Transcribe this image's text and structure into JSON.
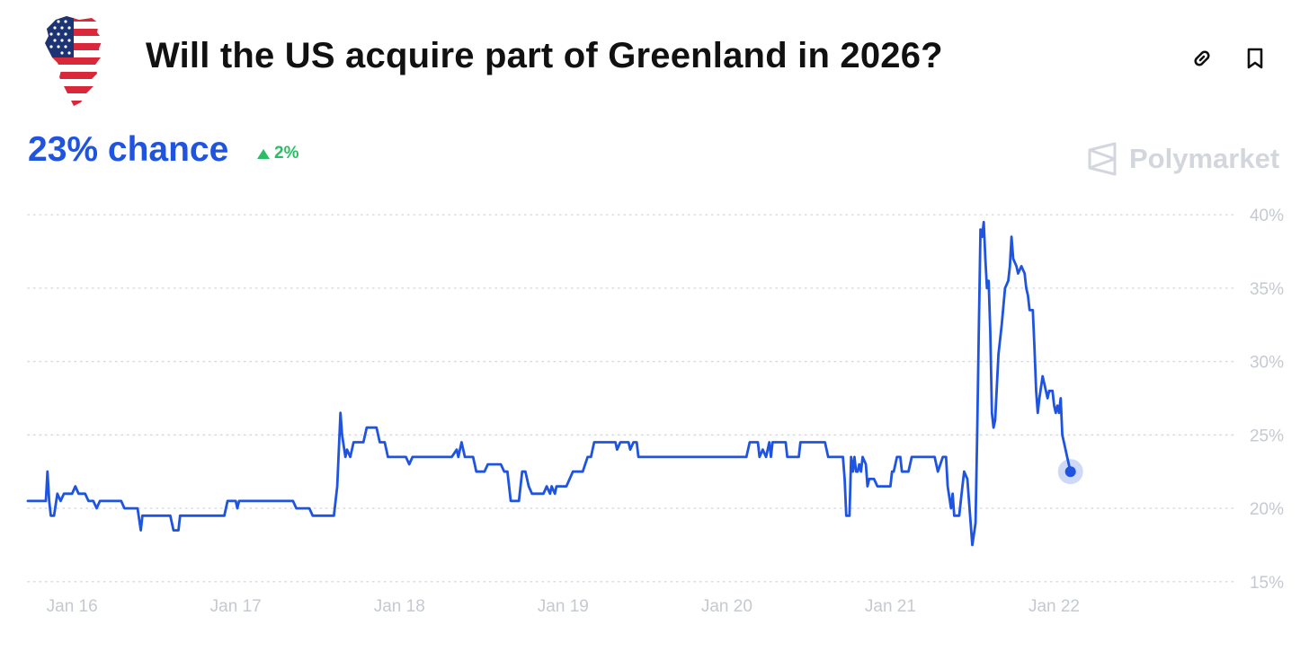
{
  "header": {
    "title": "Will the US acquire part of Greenland in 2026?",
    "icon": "greenland-us-flag-icon",
    "link_icon": "link-icon",
    "bookmark_icon": "bookmark-icon"
  },
  "stats": {
    "chance_label": "23% chance",
    "change_label": "2%",
    "change_direction": "up"
  },
  "brand": {
    "name": "Polymarket",
    "icon": "polymarket-logo-icon"
  },
  "colors": {
    "accent": "#1f54e0",
    "positive": "#2bbd66",
    "grid": "#d6d9de",
    "axis_text": "#c5c9d0",
    "brand_text": "#d3d6dc",
    "title": "#111111"
  },
  "chart_data": {
    "type": "line",
    "title": "",
    "xlabel": "",
    "ylabel": "",
    "x_unit": "days",
    "xlim": [
      15.33,
      22.63
    ],
    "ylim": [
      14.5,
      40.5
    ],
    "grid": true,
    "grid_style": "dotted",
    "legend": "none",
    "x_ticks": [
      {
        "value": 15.6,
        "label": "Jan 16"
      },
      {
        "value": 16.6,
        "label": "Jan 17"
      },
      {
        "value": 17.6,
        "label": "Jan 18"
      },
      {
        "value": 18.6,
        "label": "Jan 19"
      },
      {
        "value": 19.6,
        "label": "Jan 20"
      },
      {
        "value": 20.6,
        "label": "Jan 21"
      },
      {
        "value": 21.6,
        "label": "Jan 22"
      }
    ],
    "y_ticks": [
      {
        "value": 15,
        "label": "15%"
      },
      {
        "value": 20,
        "label": "20%"
      },
      {
        "value": 25,
        "label": "25%"
      },
      {
        "value": 30,
        "label": "30%"
      },
      {
        "value": 35,
        "label": "35%"
      },
      {
        "value": 40,
        "label": "40%"
      }
    ],
    "series": [
      {
        "name": "",
        "color": "#1f54e0",
        "points": [
          [
            15.33,
            20.5
          ],
          [
            15.44,
            20.5
          ],
          [
            15.45,
            22.5
          ],
          [
            15.46,
            20.5
          ],
          [
            15.47,
            19.5
          ],
          [
            15.49,
            19.5
          ],
          [
            15.51,
            21.0
          ],
          [
            15.53,
            20.5
          ],
          [
            15.55,
            21.0
          ],
          [
            15.6,
            21.0
          ],
          [
            15.62,
            21.5
          ],
          [
            15.64,
            21.0
          ],
          [
            15.68,
            21.0
          ],
          [
            15.7,
            20.5
          ],
          [
            15.73,
            20.5
          ],
          [
            15.75,
            20.0
          ],
          [
            15.77,
            20.5
          ],
          [
            15.9,
            20.5
          ],
          [
            15.92,
            20.0
          ],
          [
            16.0,
            20.0
          ],
          [
            16.02,
            18.5
          ],
          [
            16.03,
            19.5
          ],
          [
            16.2,
            19.5
          ],
          [
            16.22,
            18.5
          ],
          [
            16.25,
            18.5
          ],
          [
            16.26,
            19.5
          ],
          [
            16.53,
            19.5
          ],
          [
            16.55,
            20.5
          ],
          [
            16.6,
            20.5
          ],
          [
            16.61,
            20.0
          ],
          [
            16.62,
            20.5
          ],
          [
            16.95,
            20.5
          ],
          [
            16.97,
            20.0
          ],
          [
            17.05,
            20.0
          ],
          [
            17.07,
            19.5
          ],
          [
            17.2,
            19.5
          ],
          [
            17.22,
            21.5
          ],
          [
            17.24,
            26.5
          ],
          [
            17.25,
            25.0
          ],
          [
            17.27,
            23.5
          ],
          [
            17.28,
            24.0
          ],
          [
            17.3,
            23.5
          ],
          [
            17.32,
            24.5
          ],
          [
            17.38,
            24.5
          ],
          [
            17.4,
            25.5
          ],
          [
            17.46,
            25.5
          ],
          [
            17.48,
            24.5
          ],
          [
            17.51,
            24.5
          ],
          [
            17.53,
            23.5
          ],
          [
            17.64,
            23.5
          ],
          [
            17.66,
            23.0
          ],
          [
            17.68,
            23.5
          ],
          [
            17.92,
            23.5
          ],
          [
            17.95,
            24.0
          ],
          [
            17.96,
            23.5
          ],
          [
            17.98,
            24.5
          ],
          [
            18.0,
            23.5
          ],
          [
            18.05,
            23.5
          ],
          [
            18.07,
            22.5
          ],
          [
            18.12,
            22.5
          ],
          [
            18.14,
            23.0
          ],
          [
            18.22,
            23.0
          ],
          [
            18.24,
            22.5
          ],
          [
            18.26,
            22.5
          ],
          [
            18.28,
            20.5
          ],
          [
            18.33,
            20.5
          ],
          [
            18.35,
            22.5
          ],
          [
            18.37,
            22.5
          ],
          [
            18.39,
            21.5
          ],
          [
            18.41,
            21.0
          ],
          [
            18.48,
            21.0
          ],
          [
            18.5,
            21.5
          ],
          [
            18.52,
            21.0
          ],
          [
            18.53,
            21.5
          ],
          [
            18.55,
            21.0
          ],
          [
            18.56,
            21.5
          ],
          [
            18.62,
            21.5
          ],
          [
            18.64,
            22.0
          ],
          [
            18.66,
            22.5
          ],
          [
            18.72,
            22.5
          ],
          [
            18.75,
            23.5
          ],
          [
            18.77,
            23.5
          ],
          [
            18.79,
            24.5
          ],
          [
            18.92,
            24.5
          ],
          [
            18.93,
            24.0
          ],
          [
            18.95,
            24.5
          ],
          [
            19.0,
            24.5
          ],
          [
            19.01,
            24.0
          ],
          [
            19.03,
            24.5
          ],
          [
            19.05,
            24.5
          ],
          [
            19.06,
            23.5
          ],
          [
            19.2,
            23.5
          ],
          [
            19.6,
            23.5
          ],
          [
            19.72,
            23.5
          ],
          [
            19.74,
            24.5
          ],
          [
            19.79,
            24.5
          ],
          [
            19.8,
            23.5
          ],
          [
            19.82,
            24.0
          ],
          [
            19.84,
            23.5
          ],
          [
            19.86,
            24.5
          ],
          [
            19.87,
            23.5
          ],
          [
            19.88,
            24.5
          ],
          [
            19.96,
            24.5
          ],
          [
            19.97,
            23.5
          ],
          [
            20.04,
            23.5
          ],
          [
            20.05,
            24.5
          ],
          [
            20.2,
            24.5
          ],
          [
            20.22,
            23.5
          ],
          [
            20.31,
            23.5
          ],
          [
            20.32,
            22.0
          ],
          [
            20.33,
            19.5
          ],
          [
            20.35,
            19.5
          ],
          [
            20.36,
            23.5
          ],
          [
            20.37,
            22.5
          ],
          [
            20.38,
            23.5
          ],
          [
            20.39,
            22.5
          ],
          [
            20.4,
            22.5
          ],
          [
            20.41,
            23.0
          ],
          [
            20.42,
            22.5
          ],
          [
            20.43,
            23.5
          ],
          [
            20.45,
            23.0
          ],
          [
            20.46,
            21.5
          ],
          [
            20.47,
            22.0
          ],
          [
            20.5,
            22.0
          ],
          [
            20.52,
            21.5
          ],
          [
            20.6,
            21.5
          ],
          [
            20.61,
            22.5
          ],
          [
            20.62,
            22.5
          ],
          [
            20.64,
            23.5
          ],
          [
            20.66,
            23.5
          ],
          [
            20.67,
            22.5
          ],
          [
            20.71,
            22.5
          ],
          [
            20.73,
            23.5
          ],
          [
            20.87,
            23.5
          ],
          [
            20.89,
            22.5
          ],
          [
            20.92,
            23.5
          ],
          [
            20.94,
            23.5
          ],
          [
            20.95,
            21.5
          ],
          [
            20.97,
            20.0
          ],
          [
            20.98,
            21.0
          ],
          [
            20.99,
            19.5
          ],
          [
            21.02,
            19.5
          ],
          [
            21.04,
            21.5
          ],
          [
            21.05,
            22.5
          ],
          [
            21.07,
            22.0
          ],
          [
            21.08,
            20.5
          ],
          [
            21.1,
            17.5
          ],
          [
            21.12,
            19.0
          ],
          [
            21.13,
            25.0
          ],
          [
            21.14,
            32.0
          ],
          [
            21.15,
            39.0
          ],
          [
            21.16,
            38.5
          ],
          [
            21.17,
            39.5
          ],
          [
            21.18,
            37.0
          ],
          [
            21.19,
            35.0
          ],
          [
            21.2,
            35.5
          ],
          [
            21.21,
            32.0
          ],
          [
            21.22,
            26.5
          ],
          [
            21.23,
            25.5
          ],
          [
            21.24,
            26.0
          ],
          [
            21.26,
            30.5
          ],
          [
            21.28,
            32.5
          ],
          [
            21.3,
            35.0
          ],
          [
            21.32,
            35.5
          ],
          [
            21.33,
            36.5
          ],
          [
            21.34,
            38.5
          ],
          [
            21.35,
            37.0
          ],
          [
            21.37,
            36.5
          ],
          [
            21.38,
            36.0
          ],
          [
            21.4,
            36.5
          ],
          [
            21.42,
            36.0
          ],
          [
            21.43,
            35.0
          ],
          [
            21.44,
            34.5
          ],
          [
            21.45,
            33.5
          ],
          [
            21.47,
            33.5
          ],
          [
            21.48,
            31.0
          ],
          [
            21.49,
            28.0
          ],
          [
            21.5,
            26.5
          ],
          [
            21.51,
            27.5
          ],
          [
            21.53,
            29.0
          ],
          [
            21.55,
            28.0
          ],
          [
            21.56,
            27.5
          ],
          [
            21.57,
            28.0
          ],
          [
            21.59,
            28.0
          ],
          [
            21.6,
            27.0
          ],
          [
            21.61,
            26.5
          ],
          [
            21.62,
            27.0
          ],
          [
            21.63,
            26.5
          ],
          [
            21.64,
            27.5
          ],
          [
            21.65,
            25.0
          ],
          [
            21.66,
            24.5
          ],
          [
            21.67,
            24.0
          ],
          [
            21.68,
            23.5
          ],
          [
            21.7,
            22.5
          ]
        ]
      }
    ],
    "endpoint": {
      "x": 21.7,
      "y": 22.5
    }
  }
}
